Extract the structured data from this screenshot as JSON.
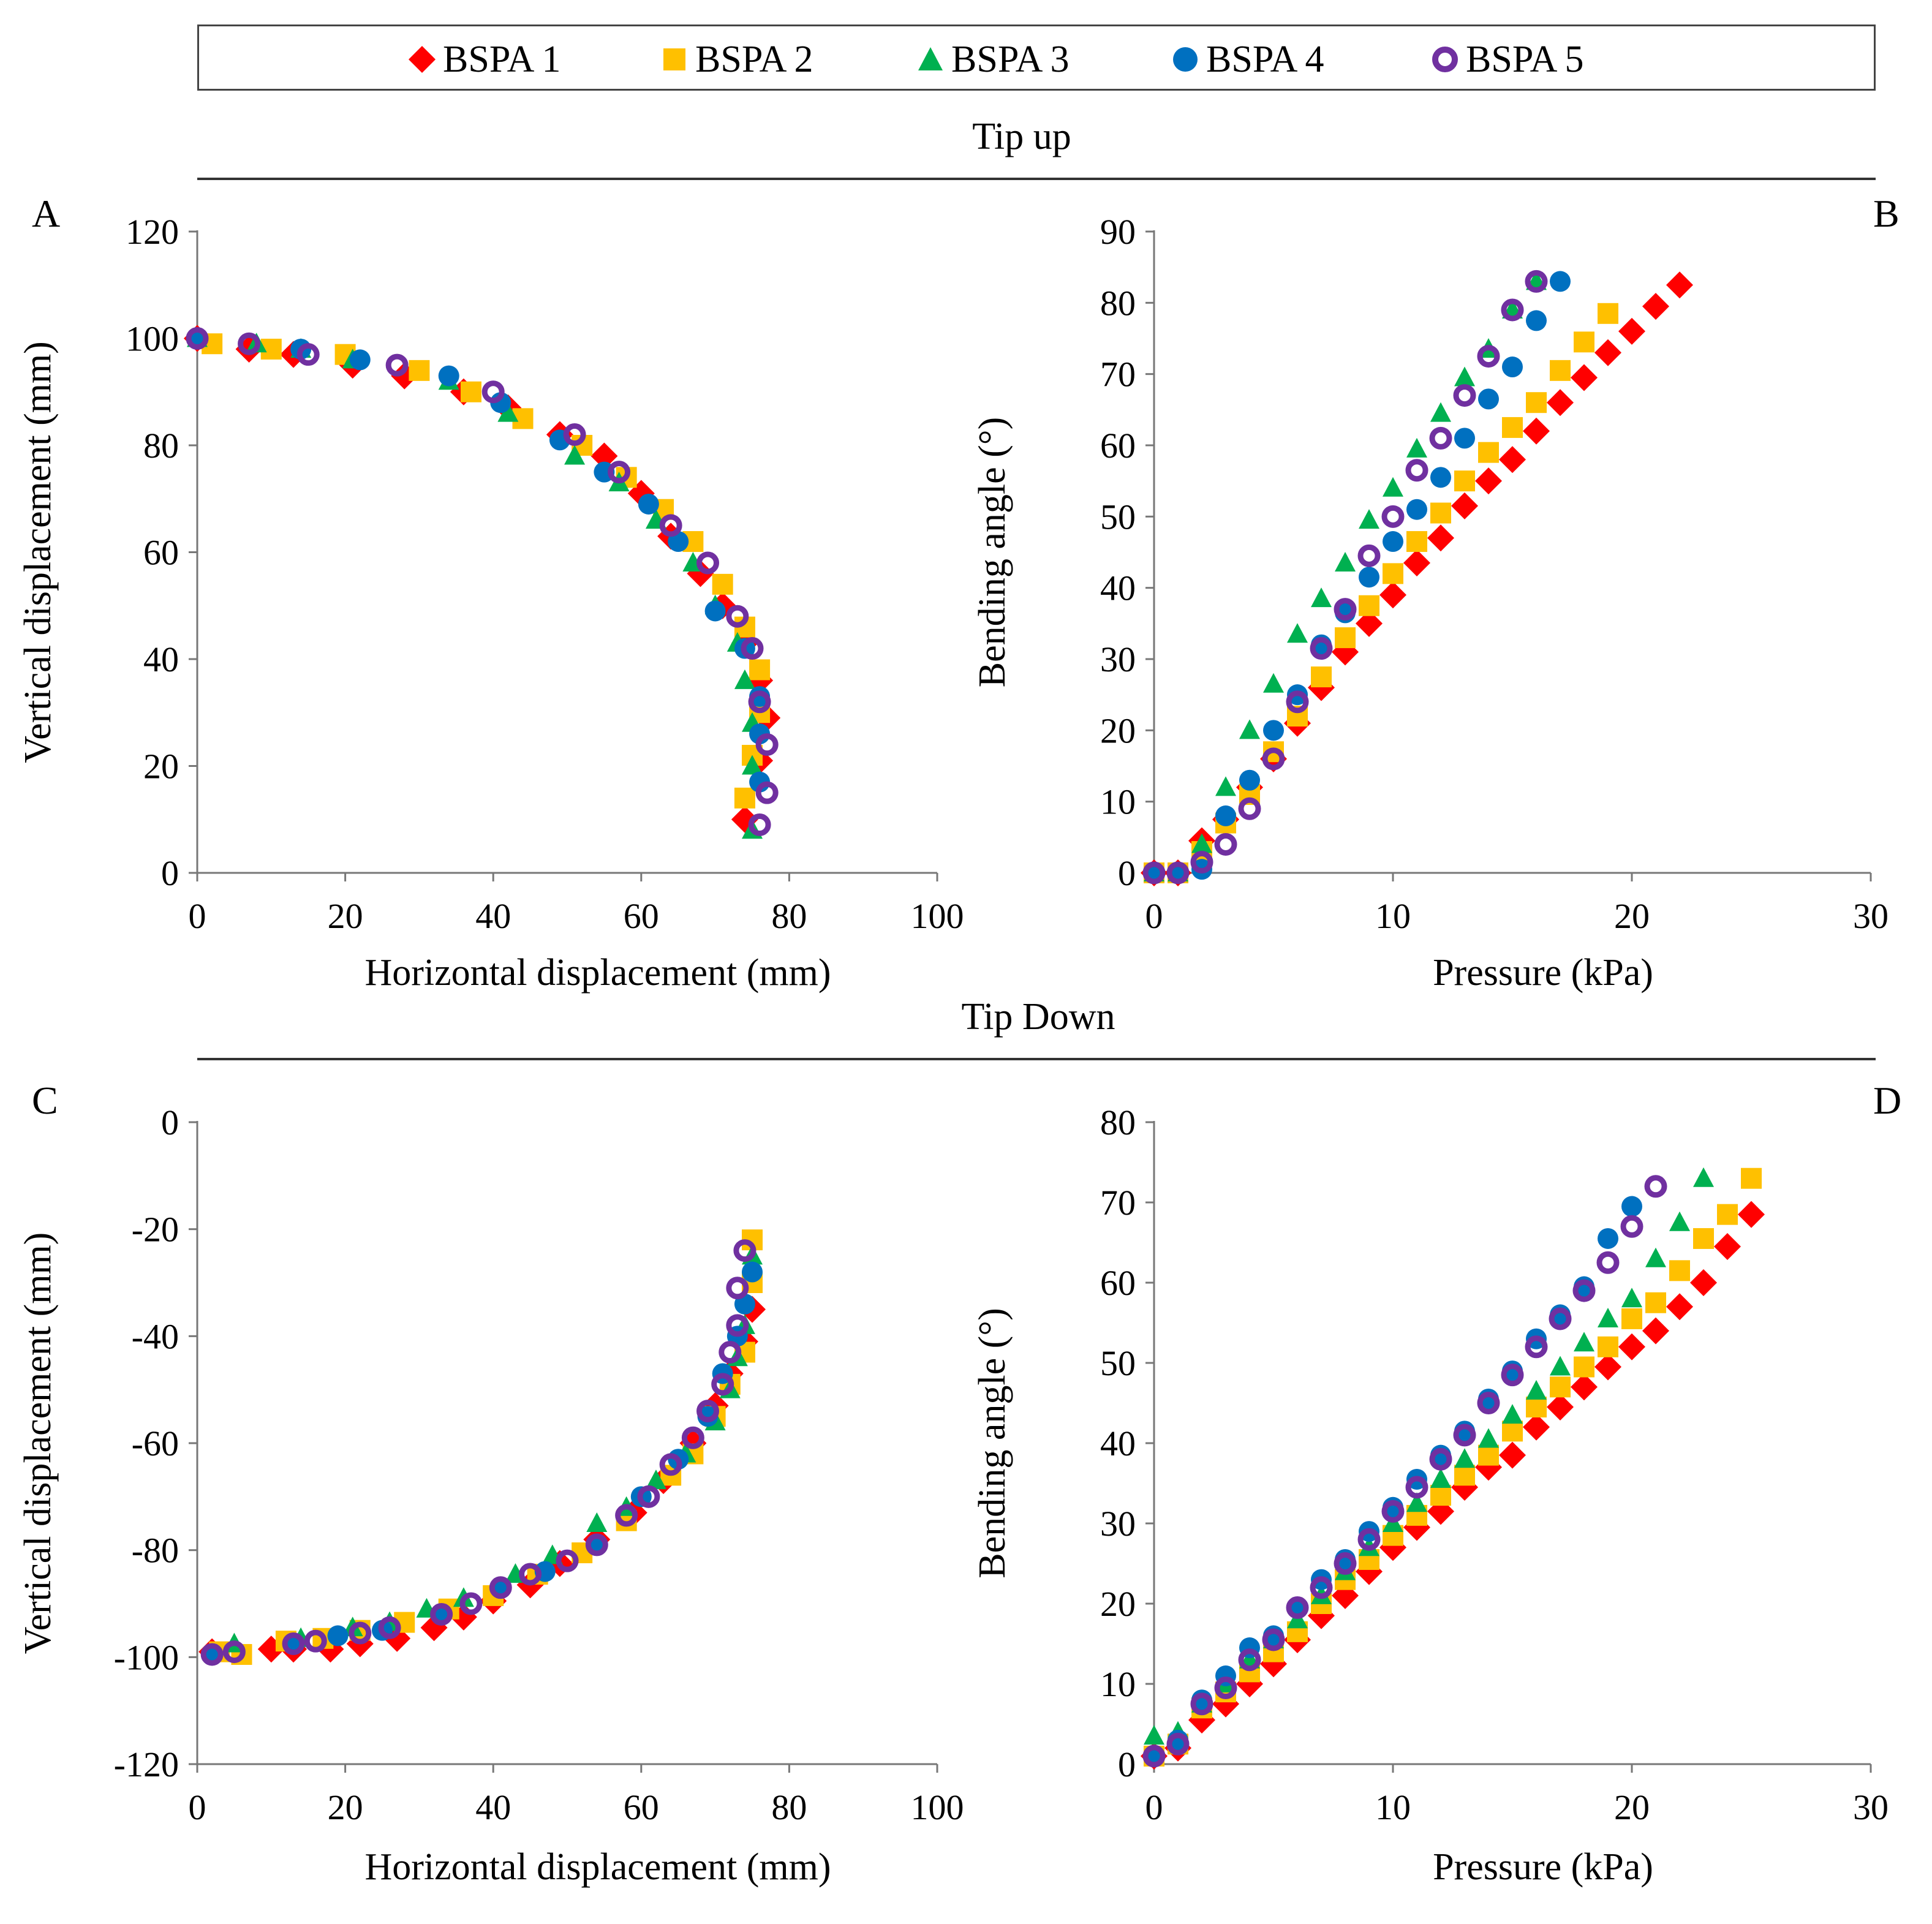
{
  "legend": {
    "series": [
      {
        "name": "BSPA 1",
        "color": "#FF0000",
        "marker": "diamond"
      },
      {
        "name": "BSPA 2",
        "color": "#FFC000",
        "marker": "square"
      },
      {
        "name": "BSPA 3",
        "color": "#00B050",
        "marker": "triangle"
      },
      {
        "name": "BSPA 4",
        "color": "#0070C0",
        "marker": "circle"
      },
      {
        "name": "BSPA 5",
        "color": "#7030A0",
        "marker": "ring"
      }
    ]
  },
  "sections": {
    "tip_up": "Tip up",
    "tip_down": "Tip Down"
  },
  "panels": {
    "A": "A",
    "B": "B",
    "C": "C",
    "D": "D"
  },
  "chart_data": [
    {
      "id": "A",
      "type": "scatter",
      "xlabel": "Horizontal  displacement (mm)",
      "ylabel": "Vertical displacement (mm)",
      "xlim": [
        0,
        100
      ],
      "ylim": [
        0,
        120
      ],
      "xticks": [
        0,
        20,
        40,
        60,
        80,
        100
      ],
      "yticks": [
        0,
        20,
        40,
        60,
        80,
        100,
        120
      ],
      "grid": false,
      "series": [
        {
          "name": "BSPA 1",
          "x": [
            0,
            7,
            13,
            21,
            28,
            36,
            42,
            49,
            55,
            60,
            64,
            68,
            71,
            74,
            76,
            77,
            76,
            74
          ],
          "y": [
            100,
            98,
            97,
            95,
            93,
            90,
            87,
            82,
            78,
            71,
            63,
            56,
            50,
            43,
            36,
            29,
            21,
            10
          ]
        },
        {
          "name": "BSPA 2",
          "x": [
            2,
            10,
            20,
            30,
            37,
            44,
            52,
            58,
            63,
            67,
            71,
            74,
            76,
            76,
            75,
            74
          ],
          "y": [
            99,
            98,
            97,
            94,
            90,
            85,
            80,
            74,
            68,
            62,
            54,
            46,
            38,
            30,
            22,
            14
          ]
        },
        {
          "name": "BSPA 3",
          "x": [
            0,
            8,
            14,
            21,
            34,
            42,
            51,
            57,
            62,
            67,
            70,
            73,
            74,
            75,
            75,
            75
          ],
          "y": [
            100,
            99,
            98,
            96,
            92,
            86,
            78,
            73,
            66,
            58,
            50,
            43,
            36,
            28,
            20,
            8
          ]
        },
        {
          "name": "BSPA 4",
          "x": [
            0,
            14,
            22,
            34,
            41,
            49,
            55,
            61,
            65,
            70,
            74,
            76,
            76,
            76
          ],
          "y": [
            100,
            98,
            96,
            93,
            88,
            81,
            75,
            69,
            62,
            49,
            42,
            33,
            26,
            17
          ]
        },
        {
          "name": "BSPA 5",
          "x": [
            0,
            7,
            15,
            27,
            40,
            51,
            57,
            64,
            69,
            73,
            75,
            76,
            77,
            77,
            76
          ],
          "y": [
            100,
            99,
            97,
            95,
            90,
            82,
            75,
            65,
            58,
            48,
            42,
            32,
            24,
            15,
            9
          ]
        }
      ]
    },
    {
      "id": "B",
      "type": "scatter",
      "xlabel": "Pressure (kPa)",
      "ylabel": "Bending  angle (°)",
      "xlim": [
        0,
        30
      ],
      "ylim": [
        0,
        90
      ],
      "xticks": [
        0,
        10,
        20,
        30
      ],
      "yticks": [
        0,
        10,
        20,
        30,
        40,
        50,
        60,
        70,
        80,
        90
      ],
      "grid": false,
      "series": [
        {
          "name": "BSPA 1",
          "x": [
            0,
            1,
            2,
            3,
            4,
            5,
            6,
            7,
            8,
            9,
            10,
            11,
            12,
            13,
            14,
            15,
            16,
            17,
            18,
            19,
            20,
            21,
            22
          ],
          "y": [
            0,
            0,
            4.5,
            7.5,
            12,
            16,
            21,
            26,
            31,
            35,
            39,
            43.5,
            47,
            51.5,
            55,
            58,
            62,
            66,
            69.5,
            73,
            76,
            79.5,
            82.5
          ]
        },
        {
          "name": "BSPA 2",
          "x": [
            0,
            1,
            2,
            3,
            4,
            5,
            6,
            7,
            8,
            9,
            10,
            11,
            12,
            13,
            14,
            15,
            16,
            17,
            18,
            19
          ],
          "y": [
            0,
            0,
            3,
            7,
            11,
            17,
            22,
            27.5,
            33,
            37.5,
            42,
            46.5,
            50.5,
            55,
            59,
            62.5,
            66,
            70.5,
            74.5,
            78.5
          ]
        },
        {
          "name": "BSPA 3",
          "x": [
            0,
            1,
            2,
            3,
            4,
            5,
            6,
            7,
            8,
            9,
            10,
            11,
            12,
            13,
            14,
            15,
            16
          ],
          "y": [
            0,
            0,
            4,
            12,
            20,
            26.5,
            33.5,
            38.5,
            43.5,
            49.5,
            54,
            59.5,
            64.5,
            69.5,
            73.5,
            79,
            83
          ]
        },
        {
          "name": "BSPA 4",
          "x": [
            0,
            1,
            2,
            3,
            4,
            5,
            6,
            7,
            8,
            9,
            10,
            11,
            12,
            13,
            14,
            15,
            16,
            17
          ],
          "y": [
            0,
            0,
            0.5,
            8,
            13,
            20,
            25,
            32,
            36.5,
            41.5,
            46.5,
            51,
            55.5,
            61,
            66.5,
            71,
            77.5,
            83
          ]
        },
        {
          "name": "BSPA 5",
          "x": [
            0,
            1,
            2,
            3,
            4,
            5,
            6,
            7,
            8,
            9,
            10,
            11,
            12,
            13,
            14,
            15,
            16
          ],
          "y": [
            0,
            0,
            1.5,
            4,
            9,
            16,
            24,
            31.5,
            37,
            44.5,
            50,
            56.5,
            61,
            67,
            72.5,
            79,
            83
          ]
        }
      ]
    },
    {
      "id": "C",
      "type": "scatter",
      "xlabel": "Horizontal  displacement (mm)",
      "ylabel": "Vertical displacement (mm)",
      "xlim": [
        0,
        100
      ],
      "ylim": [
        -120,
        0
      ],
      "xticks": [
        0,
        20,
        40,
        60,
        80,
        100
      ],
      "yticks": [
        0,
        -20,
        -40,
        -60,
        -80,
        -100,
        -120
      ],
      "grid": false,
      "series": [
        {
          "name": "BSPA 1",
          "x": [
            2,
            10,
            13,
            18,
            22,
            27,
            32,
            36,
            40,
            45,
            49,
            54,
            59,
            63,
            67,
            70,
            72,
            74,
            75
          ],
          "y": [
            -99,
            -98.5,
            -98.5,
            -98.5,
            -97.5,
            -96.5,
            -94.5,
            -92.5,
            -89.5,
            -86.5,
            -82.5,
            -78,
            -73,
            -67,
            -60,
            -53,
            -47,
            -41,
            -35
          ]
        },
        {
          "name": "BSPA 2",
          "x": [
            3,
            6,
            12,
            17,
            22,
            28,
            34,
            40,
            46,
            52,
            58,
            64,
            67,
            70,
            72,
            74,
            75,
            75
          ],
          "y": [
            -99,
            -99.5,
            -97,
            -96.5,
            -95,
            -93.5,
            -91,
            -88.5,
            -84.5,
            -80.5,
            -74.5,
            -66,
            -62,
            -55,
            -49,
            -43,
            -30,
            -22
          ]
        },
        {
          "name": "BSPA 3",
          "x": [
            5,
            14,
            21,
            26,
            31,
            36,
            43,
            48,
            54,
            58,
            62,
            66,
            70,
            72,
            73,
            74,
            75
          ],
          "y": [
            -97.5,
            -96.5,
            -94.5,
            -93.5,
            -91,
            -89,
            -84.5,
            -81,
            -75,
            -72,
            -67,
            -62,
            -56,
            -50,
            -44,
            -38,
            -25
          ]
        },
        {
          "name": "BSPA 4",
          "x": [
            2,
            13,
            19,
            25,
            33,
            41,
            47,
            54,
            60,
            65,
            69,
            71,
            73,
            74,
            75
          ],
          "y": [
            -99.5,
            -97.5,
            -96,
            -95,
            -92,
            -87,
            -84,
            -79,
            -70,
            -63,
            -55,
            -47,
            -40,
            -34,
            -28
          ]
        },
        {
          "name": "BSPA 5",
          "x": [
            2,
            5,
            13,
            16,
            22,
            26,
            33,
            37,
            41,
            45,
            50,
            54,
            58,
            61,
            64,
            67,
            69,
            71,
            72,
            73,
            73,
            74
          ],
          "y": [
            -99.5,
            -99,
            -97.5,
            -97,
            -95.5,
            -94.5,
            -92,
            -90,
            -87,
            -84.5,
            -82,
            -79,
            -73.5,
            -70,
            -64,
            -59,
            -54,
            -49,
            -43,
            -38,
            -31,
            -24
          ]
        }
      ]
    },
    {
      "id": "D",
      "type": "scatter",
      "xlabel": "Pressure (kPa)",
      "ylabel": "Bending  angle (°)",
      "xlim": [
        0,
        30
      ],
      "ylim": [
        0,
        80
      ],
      "xticks": [
        0,
        10,
        20,
        30
      ],
      "yticks": [
        0,
        10,
        20,
        30,
        40,
        50,
        60,
        70,
        80
      ],
      "grid": false,
      "series": [
        {
          "name": "BSPA 1",
          "x": [
            0,
            1,
            2,
            3,
            4,
            5,
            6,
            7,
            8,
            9,
            10,
            11,
            12,
            13,
            14,
            15,
            16,
            17,
            18,
            19,
            20,
            21,
            22,
            23,
            24,
            25
          ],
          "y": [
            1,
            2,
            5.5,
            7.5,
            10,
            12.5,
            15.5,
            18.5,
            21,
            24,
            27,
            29.5,
            31.5,
            34.5,
            37,
            38.5,
            42,
            44.5,
            47,
            49.5,
            52,
            54,
            57,
            60,
            64.5,
            68.5
          ]
        },
        {
          "name": "BSPA 2",
          "x": [
            0,
            1,
            2,
            3,
            4,
            5,
            6,
            7,
            8,
            9,
            10,
            11,
            12,
            13,
            14,
            15,
            16,
            17,
            18,
            19,
            20,
            21,
            22,
            23,
            24,
            25
          ],
          "y": [
            1,
            2.5,
            7,
            9,
            11.5,
            14,
            16.5,
            20,
            23,
            25.5,
            28.5,
            31,
            33.5,
            36,
            38.5,
            41.5,
            44.5,
            47,
            49.5,
            52,
            55.5,
            57.5,
            61.5,
            65.5,
            68.5,
            73
          ]
        },
        {
          "name": "BSPA 3",
          "x": [
            0,
            1,
            2,
            3,
            4,
            5,
            6,
            7,
            8,
            9,
            10,
            11,
            12,
            13,
            14,
            15,
            16,
            17,
            18,
            19,
            20,
            21,
            22,
            23
          ],
          "y": [
            3.5,
            4,
            7.5,
            10,
            13,
            15.5,
            18,
            21,
            24,
            27,
            30,
            32.5,
            35.5,
            38,
            40.5,
            43.5,
            46.5,
            49.5,
            52.5,
            55.5,
            58,
            63,
            67.5,
            73
          ]
        },
        {
          "name": "BSPA 4",
          "x": [
            0,
            1,
            2,
            3,
            4,
            5,
            6,
            7,
            8,
            9,
            10,
            11,
            12,
            13,
            14,
            15,
            16,
            17,
            18,
            19,
            20
          ],
          "y": [
            1,
            3,
            8,
            11,
            14.5,
            16,
            19.5,
            23,
            25.5,
            29,
            32,
            35.5,
            38.5,
            41.5,
            45.5,
            49,
            53,
            56,
            59.5,
            65.5,
            69.5
          ]
        },
        {
          "name": "BSPA 5",
          "x": [
            0,
            1,
            2,
            3,
            4,
            5,
            6,
            7,
            8,
            9,
            10,
            11,
            12,
            13,
            14,
            15,
            16,
            17,
            18,
            19,
            20,
            21
          ],
          "y": [
            1,
            2.5,
            7.5,
            9.5,
            13,
            15.5,
            19.5,
            22,
            25,
            28,
            31.5,
            34.5,
            38,
            41,
            45,
            48.5,
            52,
            55.5,
            59,
            62.5,
            67,
            72
          ]
        }
      ]
    }
  ]
}
